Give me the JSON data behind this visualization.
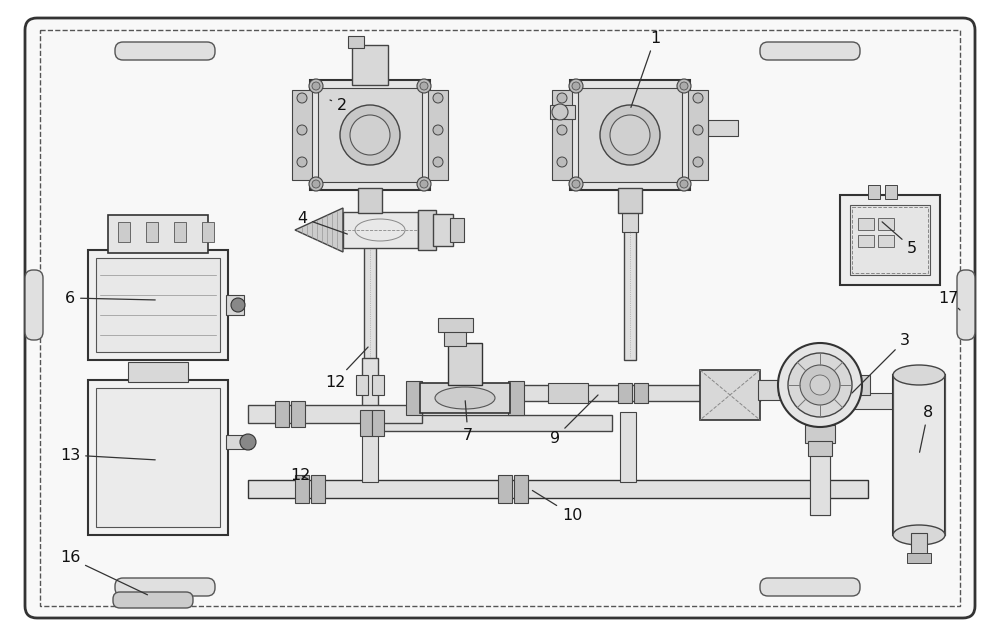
{
  "bg_color": "#ffffff",
  "lc": "#333333",
  "gray1": "#e8e8e8",
  "gray2": "#d0d0d0",
  "gray3": "#aaaaaa",
  "fs": 11
}
